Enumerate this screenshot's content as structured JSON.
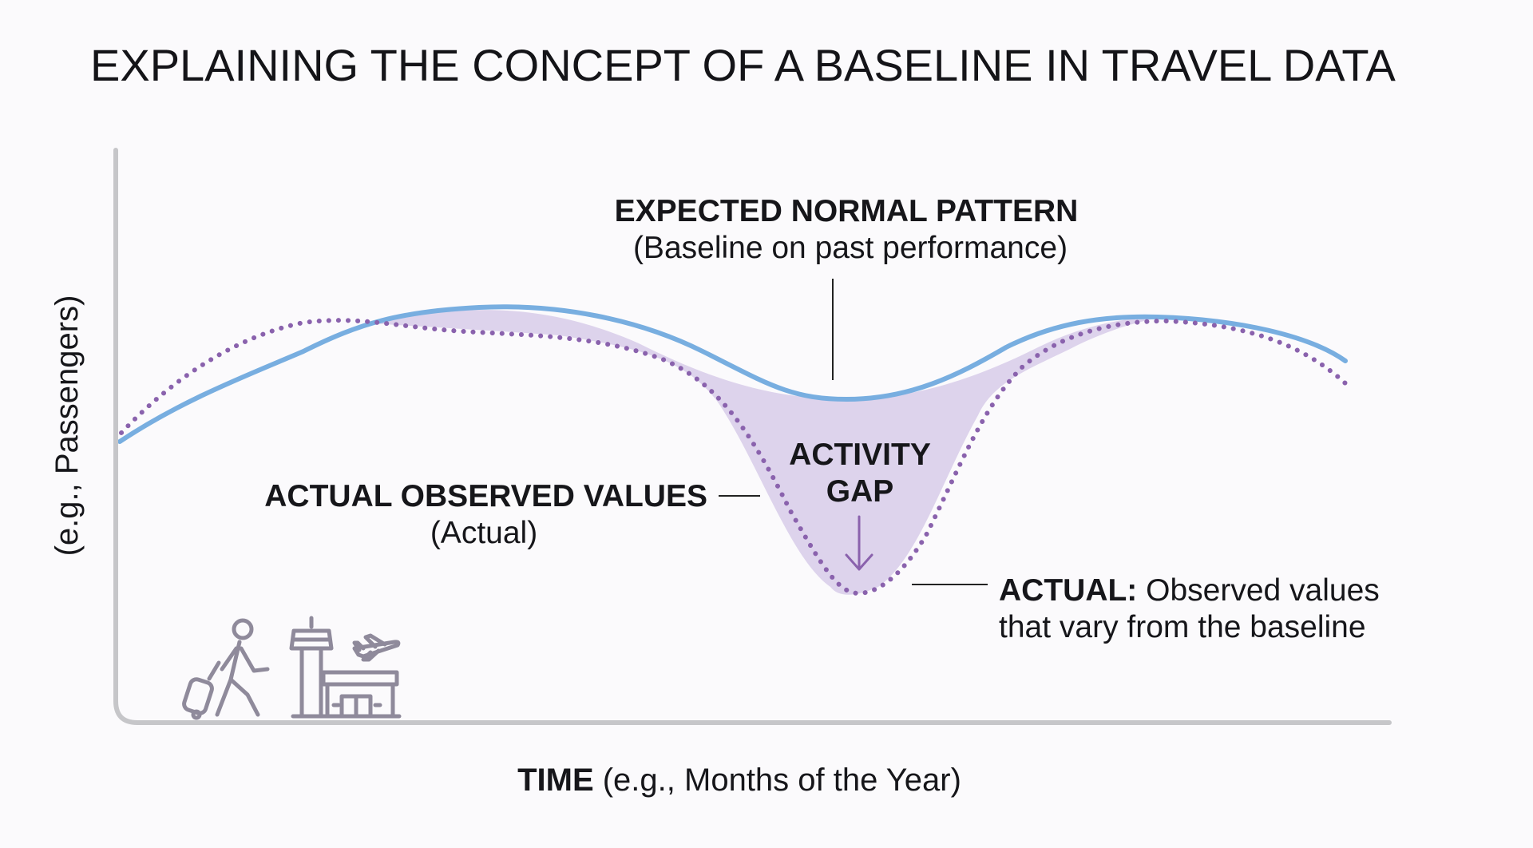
{
  "title": "EXPLAINING THE CONCEPT OF A BASELINE IN TRAVEL DATA",
  "x_axis": {
    "bold": "TIME",
    "rest": " (e.g., Months of the Year)"
  },
  "y_axis": {
    "label": "(e.g., Passengers)"
  },
  "baseline_callout": {
    "heading": "EXPECTED NORMAL PATTERN",
    "sub": "(Baseline on past performance)"
  },
  "actual_callout": {
    "heading": "ACTUAL OBSERVED VALUES",
    "sub": "(Actual)"
  },
  "gap_label": {
    "line1": "ACTIVITY",
    "line2": "GAP"
  },
  "actual_note": {
    "bold": "ACTUAL:",
    "rest": " Observed values",
    "line2": "that vary from the baseline"
  },
  "icons": [
    "traveler-icon",
    "control-tower-icon",
    "airplane-icon",
    "terminal-building-icon"
  ],
  "colors": {
    "baseline": "#78aee0",
    "actual": "#8a62ad",
    "gap_fill": "#ddd3ec",
    "axis": "#c6c6c9",
    "icon": "#8f8a9b",
    "gap_arrow": "#8a62ad"
  }
}
